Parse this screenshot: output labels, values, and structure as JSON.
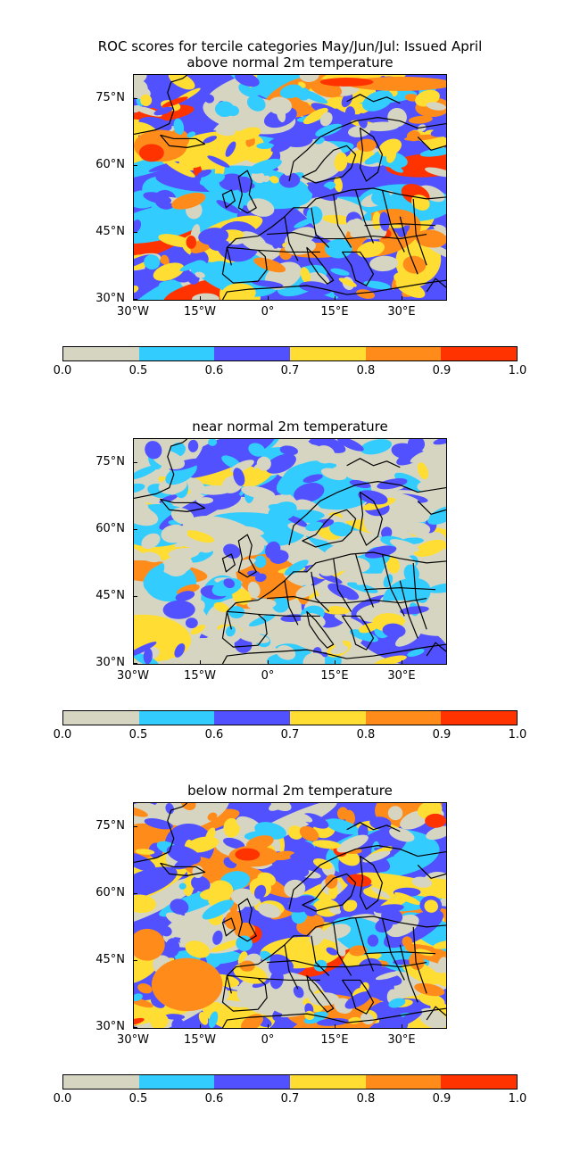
{
  "figure": {
    "title_line1": "ROC scores for tercile categories May/Jun/Jul: Issued April"
  },
  "panels": [
    {
      "title": "above normal 2m temperature",
      "pattern": "above"
    },
    {
      "title": "near normal 2m temperature",
      "pattern": "near"
    },
    {
      "title": "below normal 2m temperature",
      "pattern": "below"
    }
  ],
  "axes": {
    "lat_labels": [
      "75°N",
      "60°N",
      "45°N",
      "30°N"
    ],
    "lon_labels": [
      "30°W",
      "15°W",
      "0°",
      "15°E",
      "30°E"
    ]
  },
  "colorbar": {
    "tick_labels": [
      "0.0",
      "0.5",
      "0.6",
      "0.7",
      "0.8",
      "0.9",
      "1.0"
    ],
    "colors": [
      "#d6d5c2",
      "#33ccff",
      "#5151ff",
      "#ffdd33",
      "#ff8c1a",
      "#ff3300"
    ]
  }
}
